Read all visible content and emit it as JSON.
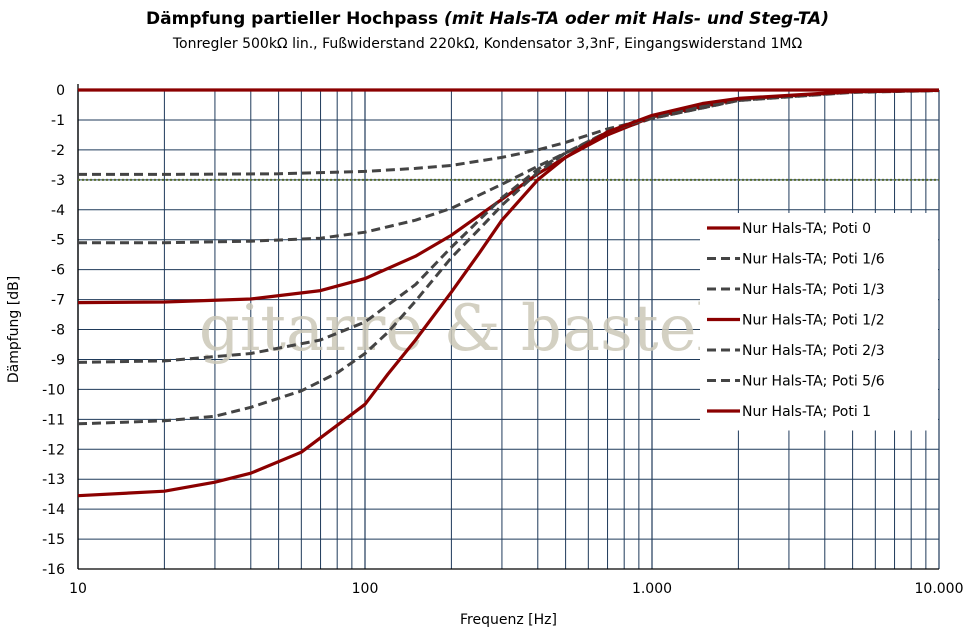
{
  "title": {
    "main": "Dämpfung partieller Hochpass ",
    "italic": "(mit Hals-TA oder mit Hals- und Steg-TA)"
  },
  "subtitle": "Tonregler 500kΩ lin., Fußwiderstand 220kΩ, Kondensator 3,3nF, Eingangswiderstand 1MΩ",
  "watermark": "gitarre & basteln",
  "colors": {
    "solid": "#8b0000",
    "dashed": "#444444",
    "grid": "#1f3a5a",
    "threshold": "#556b2f"
  },
  "chart_data": {
    "type": "line",
    "xlabel": "Frequenz [Hz]",
    "ylabel": "Dämpfung [dB]",
    "x_scale": "log",
    "xlim": [
      10,
      10000
    ],
    "ylim": [
      -16,
      0
    ],
    "x_ticks": [
      {
        "value": 10,
        "label": "10"
      },
      {
        "value": 100,
        "label": "100"
      },
      {
        "value": 1000,
        "label": "1.000"
      },
      {
        "value": 10000,
        "label": "10.000"
      }
    ],
    "y_ticks": [
      0,
      -1,
      -2,
      -3,
      -4,
      -5,
      -6,
      -7,
      -8,
      -9,
      -10,
      -11,
      -12,
      -13,
      -14,
      -15,
      -16
    ],
    "grid": true,
    "reference_line": {
      "y": -3,
      "style": "dotted"
    },
    "legend_position": "right",
    "series": [
      {
        "name": "Nur Hals-TA; Poti 0",
        "style": "solid",
        "x": [
          10,
          10000
        ],
        "y": [
          0,
          0
        ]
      },
      {
        "name": "Nur Hals-TA; Poti 1/6",
        "style": "dashed",
        "x": [
          10,
          20,
          50,
          100,
          150,
          200,
          300,
          400,
          500,
          700,
          1000,
          2000,
          5000,
          10000
        ],
        "y": [
          -2.82,
          -2.82,
          -2.8,
          -2.72,
          -2.62,
          -2.52,
          -2.25,
          -2.0,
          -1.75,
          -1.3,
          -0.95,
          -0.35,
          -0.08,
          -0.02
        ]
      },
      {
        "name": "Nur Hals-TA; Poti 1/3",
        "style": "dashed",
        "x": [
          10,
          20,
          40,
          70,
          100,
          150,
          200,
          300,
          400,
          500,
          700,
          1000,
          2000,
          5000,
          10000
        ],
        "y": [
          -5.1,
          -5.1,
          -5.05,
          -4.95,
          -4.75,
          -4.35,
          -3.95,
          -3.15,
          -2.55,
          -2.1,
          -1.45,
          -0.95,
          -0.35,
          -0.07,
          -0.02
        ]
      },
      {
        "name": "Nur Hals-TA; Poti 1/2",
        "style": "solid",
        "x": [
          10,
          20,
          40,
          70,
          100,
          150,
          200,
          300,
          400,
          500,
          700,
          1000,
          2000,
          5000,
          10000
        ],
        "y": [
          -7.1,
          -7.08,
          -6.98,
          -6.7,
          -6.3,
          -5.55,
          -4.85,
          -3.65,
          -2.8,
          -2.25,
          -1.5,
          -0.9,
          -0.3,
          -0.06,
          -0.01
        ]
      },
      {
        "name": "Nur Hals-TA; Poti 2/3",
        "style": "dashed",
        "x": [
          10,
          20,
          40,
          70,
          100,
          150,
          200,
          250,
          300,
          400,
          500,
          700,
          1000,
          2000,
          5000,
          10000
        ],
        "y": [
          -9.1,
          -9.05,
          -8.8,
          -8.35,
          -7.75,
          -6.5,
          -5.25,
          -4.35,
          -3.6,
          -2.65,
          -2.1,
          -1.4,
          -0.9,
          -0.3,
          -0.06,
          -0.01
        ]
      },
      {
        "name": "Nur Hals-TA; Poti 5/6",
        "style": "dashed",
        "x": [
          10,
          20,
          30,
          40,
          60,
          80,
          100,
          120,
          150,
          200,
          250,
          300,
          400,
          500,
          700,
          1000,
          2000,
          5000,
          10000
        ],
        "y": [
          -11.15,
          -11.05,
          -10.9,
          -10.6,
          -10.05,
          -9.45,
          -8.8,
          -8.1,
          -7.05,
          -5.6,
          -4.65,
          -3.85,
          -2.75,
          -2.1,
          -1.4,
          -0.9,
          -0.3,
          -0.06,
          -0.01
        ]
      },
      {
        "name": "Nur Hals-TA; Poti 1",
        "style": "solid",
        "x": [
          10,
          20,
          30,
          40,
          60,
          80,
          100,
          120,
          150,
          200,
          250,
          300,
          400,
          500,
          700,
          1000,
          1500,
          2000,
          5000,
          10000
        ],
        "y": [
          -13.55,
          -13.4,
          -13.1,
          -12.8,
          -12.1,
          -11.2,
          -10.5,
          -9.5,
          -8.35,
          -6.75,
          -5.45,
          -4.35,
          -3.0,
          -2.25,
          -1.4,
          -0.85,
          -0.45,
          -0.28,
          -0.05,
          -0.01
        ]
      }
    ]
  }
}
